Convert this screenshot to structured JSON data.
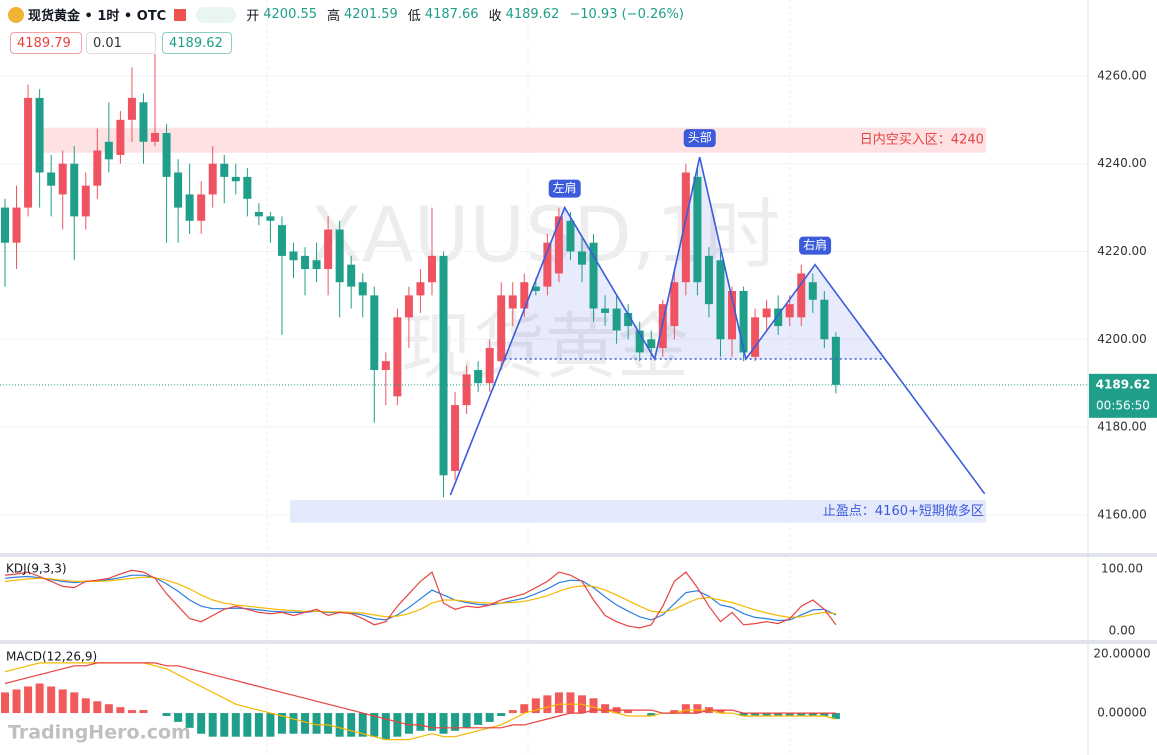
{
  "chart_data": [
    {
      "type": "candlestick",
      "title": "现货黄金 • 1时 • OTC",
      "ohlc_labels": [
        "开",
        "高",
        "低",
        "收"
      ],
      "change": "−10.93 (−0.26%)",
      "order_panel": {
        "sell": 4189.79,
        "qty": 0.01,
        "buy": 4189.62
      },
      "countdown": "00:56:50",
      "watermark": [
        "XAUUSD,1时",
        "现货黄金"
      ],
      "logo": "TradingHero.com",
      "up_color": "#ef5361",
      "down_color": "#1f9e89",
      "open": [
        4230,
        4222,
        4230,
        4255,
        4238,
        4233,
        4240,
        4228,
        4235,
        4245,
        4242,
        4250,
        4254,
        4245,
        4247,
        4238,
        4233,
        4227,
        4233,
        4240,
        4237,
        4237,
        4229,
        4228,
        4226,
        4220,
        4219,
        4218,
        4216,
        4225,
        4217,
        4213,
        4210,
        4193,
        4187,
        4205,
        4210,
        4213,
        4219,
        4170,
        4185,
        4193,
        4190,
        4195,
        4207,
        4207,
        4212,
        4212,
        4215,
        4227,
        4220,
        4222,
        4207,
        4207,
        4206,
        4202,
        4200,
        4198,
        4203,
        4213,
        4237,
        4219,
        4218,
        4200,
        4211,
        4196,
        4205,
        4207,
        4205,
        4205,
        4213,
        4209,
        4200.55
      ],
      "high": [
        4232,
        4235,
        4258,
        4257,
        4242,
        4243,
        4244,
        4238,
        4248,
        4254,
        4252,
        4262,
        4256,
        4265,
        4249,
        4241,
        4240,
        4236,
        4244,
        4242,
        4240,
        4239,
        4231,
        4229,
        4228,
        4222,
        4221,
        4222,
        4228,
        4227,
        4219,
        4215,
        4212,
        4197,
        4207,
        4212,
        4216,
        4230,
        4220,
        4188,
        4194,
        4195,
        4200,
        4213,
        4213,
        4215,
        4214,
        4224,
        4230,
        4229,
        4223,
        4224,
        4210,
        4210,
        4208,
        4204,
        4202,
        4209,
        4216,
        4240,
        4239,
        4221,
        4220,
        4212,
        4212,
        4207,
        4209,
        4210,
        4210,
        4217,
        4215,
        4211,
        4201.59
      ],
      "low": [
        4212,
        4216,
        4228,
        4230,
        4228,
        4225,
        4218,
        4225,
        4232,
        4238,
        4240,
        4245,
        4240,
        4244,
        4222,
        4222,
        4224,
        4224,
        4230,
        4231,
        4233,
        4228,
        4226,
        4222,
        4201,
        4214,
        4210,
        4213,
        4210,
        4205,
        4207,
        4205,
        4181,
        4185,
        4185,
        4198,
        4206,
        4210,
        4164,
        4168,
        4183,
        4188,
        4188,
        4193,
        4203,
        4205,
        4210,
        4210,
        4213,
        4218,
        4213,
        4204,
        4203,
        4199,
        4200,
        4195,
        4196,
        4196,
        4200,
        4210,
        4210,
        4205,
        4196,
        4196,
        4195,
        4195,
        4202,
        4201,
        4203,
        4203,
        4206,
        4198,
        4187.66
      ],
      "close": [
        4222,
        4230,
        4255,
        4238,
        4235,
        4240,
        4228,
        4235,
        4243,
        4241,
        4250,
        4255,
        4245,
        4247,
        4237,
        4230,
        4227,
        4233,
        4240,
        4237,
        4236,
        4232,
        4228,
        4227,
        4219,
        4218,
        4216,
        4216,
        4225,
        4213,
        4212,
        4210,
        4193,
        4195,
        4205,
        4210,
        4213,
        4219,
        4169,
        4185,
        4192,
        4190,
        4198,
        4210,
        4210,
        4213,
        4211,
        4222,
        4228,
        4220,
        4217,
        4207,
        4206,
        4202,
        4203,
        4197,
        4198,
        4208,
        4213,
        4238,
        4213,
        4208,
        4200,
        4211,
        4197,
        4205,
        4207,
        4203,
        4208,
        4215,
        4209,
        4200,
        4189.62
      ],
      "ylim": [
        4151.3,
        4277.3
      ],
      "yticks": [
        {
          "value": 4160,
          "label": "4160.00"
        },
        {
          "value": 4180,
          "label": "4180.00"
        },
        {
          "value": 4200,
          "label": "4200.00"
        },
        {
          "value": 4220,
          "label": "4220.00"
        },
        {
          "value": 4240,
          "label": "4240.00"
        },
        {
          "value": 4260,
          "label": "4260.00"
        }
      ],
      "grid": true,
      "zones": [
        {
          "label": "日内空买入区：4240",
          "y": [
            4242.5,
            4248.2
          ],
          "x": [
            3,
            85
          ],
          "color": "#fdd9dc",
          "text_color": "#e8423f"
        },
        {
          "label": "止盈点：4160+短期做多区",
          "y": [
            4158.2,
            4163.4
          ],
          "x": [
            24.7,
            85
          ],
          "color": "#dde3fb",
          "text_color": "#3b5bdb"
        }
      ],
      "pattern": {
        "color": "#3b5bdb",
        "points": [
          {
            "x": 38.6,
            "y": 4164.5
          },
          {
            "x": 48.5,
            "y": 4230
          },
          {
            "x": 56.3,
            "y": 4195.5
          },
          {
            "x": 60.2,
            "y": 4241.5
          },
          {
            "x": 64.2,
            "y": 4195.5
          },
          {
            "x": 70.2,
            "y": 4217
          },
          {
            "x": 84.9,
            "y": 4164.8
          }
        ],
        "point_labels": [
          null,
          "左肩",
          null,
          "头部",
          null,
          "右肩",
          null
        ],
        "neckline": {
          "y": 4195.5,
          "x": [
            43.3,
            76.3
          ]
        }
      }
    },
    {
      "type": "line",
      "title": "KDJ(9,3,3)",
      "ylim": [
        -14.5,
        119.4
      ],
      "yticks": [
        {
          "value": 0,
          "label": "0.00"
        },
        {
          "value": 100,
          "label": "100.00"
        }
      ],
      "series": [
        {
          "name": "K",
          "color": "#2f7de1",
          "values": [
            85,
            87,
            88,
            86,
            83,
            80,
            78,
            80,
            81,
            83,
            86,
            90,
            90,
            86,
            76,
            64,
            50,
            40,
            36,
            36,
            37,
            36,
            34,
            32,
            31,
            30,
            30,
            32,
            30,
            30,
            29,
            26,
            20,
            18,
            26,
            38,
            52,
            66,
            58,
            50,
            46,
            43,
            42,
            45,
            49,
            53,
            60,
            68,
            78,
            82,
            81,
            70,
            55,
            42,
            32,
            23,
            18,
            26,
            44,
            62,
            65,
            56,
            42,
            38,
            28,
            22,
            20,
            17,
            18,
            26,
            34,
            35,
            26
          ]
        },
        {
          "name": "D",
          "color": "#f5b800",
          "values": [
            80,
            82,
            84,
            85,
            84,
            82,
            80,
            80,
            80,
            81,
            83,
            85,
            87,
            86,
            82,
            76,
            68,
            58,
            50,
            45,
            42,
            40,
            38,
            36,
            34,
            33,
            32,
            32,
            31,
            31,
            30,
            29,
            26,
            23,
            24,
            28,
            35,
            45,
            50,
            50,
            48,
            46,
            45,
            45,
            46,
            48,
            52,
            57,
            64,
            70,
            73,
            72,
            66,
            58,
            49,
            40,
            32,
            30,
            35,
            44,
            52,
            54,
            50,
            46,
            40,
            34,
            29,
            25,
            22,
            23,
            27,
            30,
            28
          ]
        },
        {
          "name": "J",
          "color": "#e8423f",
          "values": [
            90,
            92,
            95,
            88,
            80,
            72,
            70,
            80,
            82,
            85,
            92,
            98,
            95,
            85,
            60,
            40,
            20,
            15,
            25,
            35,
            40,
            35,
            30,
            28,
            30,
            25,
            30,
            35,
            25,
            30,
            28,
            20,
            10,
            15,
            40,
            60,
            80,
            95,
            45,
            35,
            40,
            38,
            42,
            50,
            55,
            60,
            70,
            80,
            95,
            90,
            80,
            50,
            25,
            15,
            8,
            5,
            10,
            40,
            80,
            95,
            70,
            40,
            15,
            30,
            10,
            12,
            15,
            12,
            20,
            40,
            50,
            35,
            10
          ]
        }
      ]
    },
    {
      "type": "macd",
      "title": "MACD(12,26,9)",
      "ylim": [
        -14.2,
        23.05
      ],
      "yticks": [
        {
          "value": 0,
          "label": "0.00000"
        },
        {
          "value": 20,
          "label": "20.00000"
        }
      ],
      "up_color": "#f15a5a",
      "down_color": "#1f9e89",
      "values": [
        7,
        8,
        9,
        10,
        9,
        8,
        7,
        5,
        4,
        3,
        2,
        1,
        1,
        0,
        -1,
        -3,
        -5,
        -7,
        -8,
        -8,
        -8,
        -8,
        -8,
        -8,
        -7,
        -7,
        -7,
        -7,
        -7,
        -8,
        -8,
        -8,
        -8,
        -9,
        -8,
        -7,
        -6,
        -6,
        -7,
        -6,
        -5,
        -4,
        -3,
        -1,
        1,
        3,
        5,
        6,
        7,
        7,
        6,
        5,
        3,
        2,
        1,
        0,
        -1,
        0,
        1,
        3,
        3,
        2,
        1,
        0,
        -1,
        -1,
        -1,
        -1,
        -1,
        -1,
        -1,
        -1,
        -2
      ],
      "series": [
        {
          "name": "DIF",
          "color": "#f5b800",
          "values": [
            14,
            15,
            16,
            17,
            17,
            17,
            17,
            17,
            17,
            17,
            17,
            17,
            17,
            16,
            15,
            13,
            11,
            9,
            7,
            5,
            3,
            2,
            1,
            0,
            -1,
            -2,
            -3,
            -4,
            -4,
            -5,
            -6,
            -7,
            -8,
            -9,
            -9,
            -9,
            -8,
            -7,
            -8,
            -8,
            -7,
            -6,
            -5,
            -4,
            -2,
            0,
            1,
            2,
            3,
            3,
            3,
            2,
            1,
            0,
            -1,
            -1,
            -1,
            0,
            0,
            1,
            1,
            1,
            0,
            0,
            -1,
            -1,
            -1,
            -1,
            -1,
            -1,
            -1,
            -1,
            -2
          ]
        },
        {
          "name": "DEA",
          "color": "#e8423f",
          "values": [
            10,
            11,
            12,
            13,
            14,
            15,
            16,
            16,
            17,
            17,
            17,
            17,
            17,
            17,
            16,
            16,
            15,
            14,
            13,
            12,
            11,
            10,
            9,
            8,
            7,
            6,
            5,
            4,
            3,
            2,
            1,
            0,
            -1,
            -2,
            -3,
            -4,
            -4,
            -5,
            -5,
            -5,
            -5,
            -5,
            -5,
            -5,
            -4,
            -4,
            -3,
            -2,
            -1,
            0,
            0,
            1,
            1,
            1,
            1,
            1,
            1,
            0,
            0,
            0,
            0,
            1,
            1,
            1,
            0,
            0,
            0,
            0,
            0,
            0,
            0,
            0,
            0
          ]
        }
      ]
    }
  ]
}
